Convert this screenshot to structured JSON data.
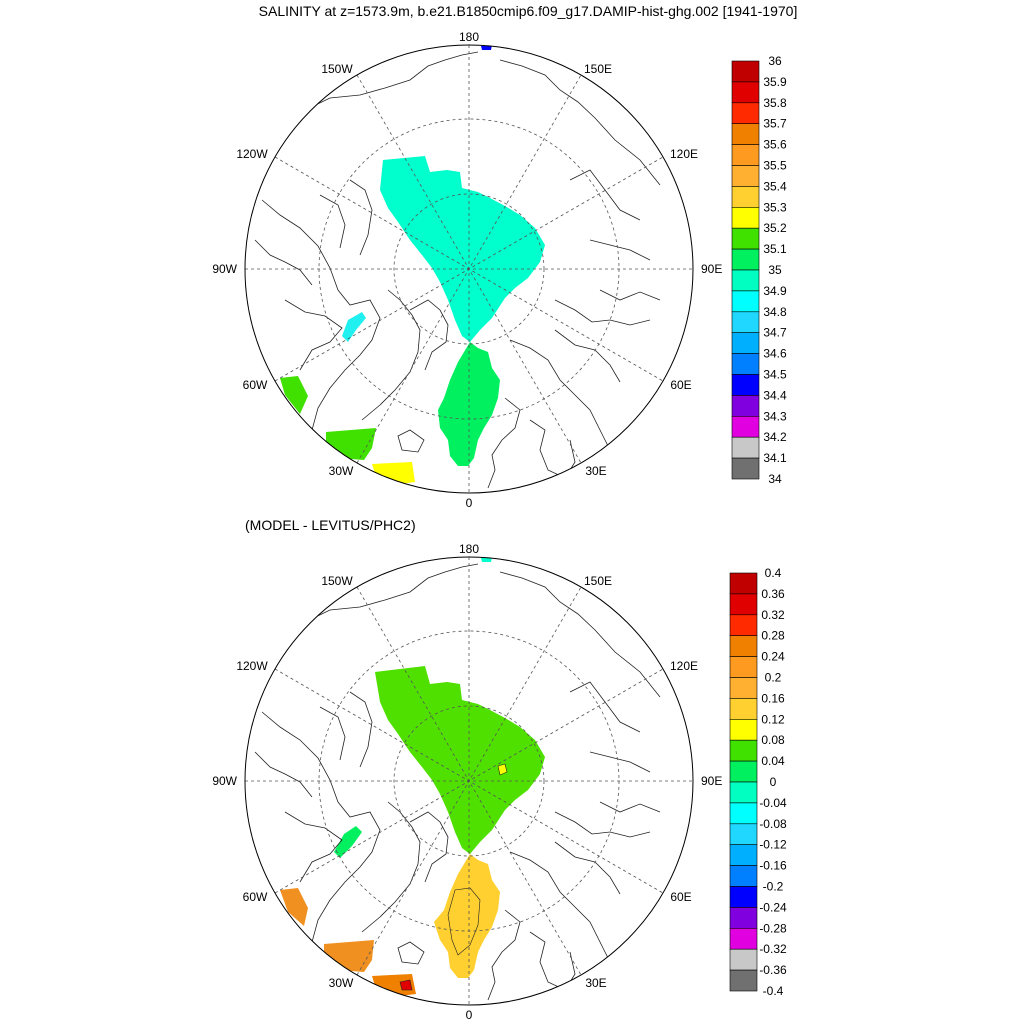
{
  "title": "SALINITY at z=1573.9m, b.e21.B1850cmip6.f09_g17.DAMIP-hist-ghg.002 [1941-1970]",
  "panel2_title": "(MODEL - LEVITUS/PHC2)",
  "longitude_labels": {
    "top": "180",
    "bottom": "0",
    "left": "90W",
    "right": "90E",
    "upper_left_1": "150W",
    "upper_left_2": "120W",
    "lower_left_1": "60W",
    "lower_left_2": "30W",
    "upper_right_1": "150E",
    "upper_right_2": "120E",
    "lower_right_1": "60E",
    "lower_right_2": "30E"
  },
  "colorbar1": {
    "labels": [
      "36",
      "35.9",
      "35.8",
      "35.7",
      "35.6",
      "35.5",
      "35.4",
      "35.3",
      "35.2",
      "35.1",
      "35",
      "34.9",
      "34.8",
      "34.7",
      "34.6",
      "34.5",
      "34.4",
      "34.3",
      "34.2",
      "34.1",
      "34"
    ],
    "colors": [
      "#c00000",
      "#e00000",
      "#ff2a00",
      "#f08000",
      "#ff9a20",
      "#ffb030",
      "#ffd030",
      "#ffff00",
      "#40e000",
      "#00f060",
      "#00ffc0",
      "#00ffff",
      "#20d8ff",
      "#00b0ff",
      "#0080ff",
      "#0000ff",
      "#8000e0",
      "#e000e0",
      "#c8c8c8",
      "#707070"
    ]
  },
  "colorbar2": {
    "labels": [
      "0.4",
      "0.36",
      "0.32",
      "0.28",
      "0.24",
      "0.2",
      "0.16",
      "0.12",
      "0.08",
      "0.04",
      "0",
      "-0.04",
      "-0.08",
      "-0.12",
      "-0.16",
      "-0.2",
      "-0.24",
      "-0.28",
      "-0.32",
      "-0.36",
      "-0.4"
    ],
    "colors": [
      "#c00000",
      "#e00000",
      "#ff2a00",
      "#f08000",
      "#ff9a20",
      "#ffb030",
      "#ffd030",
      "#ffff00",
      "#40e000",
      "#00f060",
      "#00ffc0",
      "#00ffff",
      "#20d8ff",
      "#00b0ff",
      "#0080ff",
      "#0000ff",
      "#8000e0",
      "#e000e0",
      "#c8c8c8",
      "#707070"
    ]
  }
}
